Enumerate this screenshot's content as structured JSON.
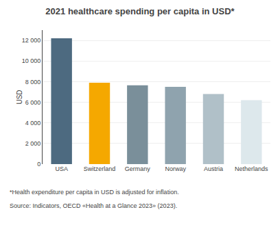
{
  "chart_data": {
    "type": "bar",
    "title": "2021 healthcare spending per capita in USD*",
    "categories": [
      "USA",
      "Switzerland",
      "Germany",
      "Norway",
      "Austria",
      "Netherlands"
    ],
    "values": [
      12200,
      7900,
      7650,
      7500,
      6800,
      6200
    ],
    "colors": [
      "#4d6a80",
      "#f5a800",
      "#7a8f9a",
      "#8fa3ae",
      "#b0c0c8",
      "#dde8ec"
    ],
    "ylabel": "USD",
    "ylim": [
      0,
      13000
    ],
    "yticks": [
      0,
      {
        "value": 2000,
        "label": "2 000"
      },
      {
        "value": 4000,
        "label": "4 000"
      },
      {
        "value": 6000,
        "label": "6 000"
      },
      {
        "value": 8000,
        "label": "8 000"
      },
      {
        "value": 10000,
        "label": "10 000"
      },
      {
        "value": 12000,
        "label": "12 000"
      }
    ],
    "grid": true,
    "annotations": [
      "*Health expenditure per capita in USD is adjusted for inflation.",
      "Source: Indicators, OECD «Health at a Glance 2023» (2023)."
    ]
  }
}
